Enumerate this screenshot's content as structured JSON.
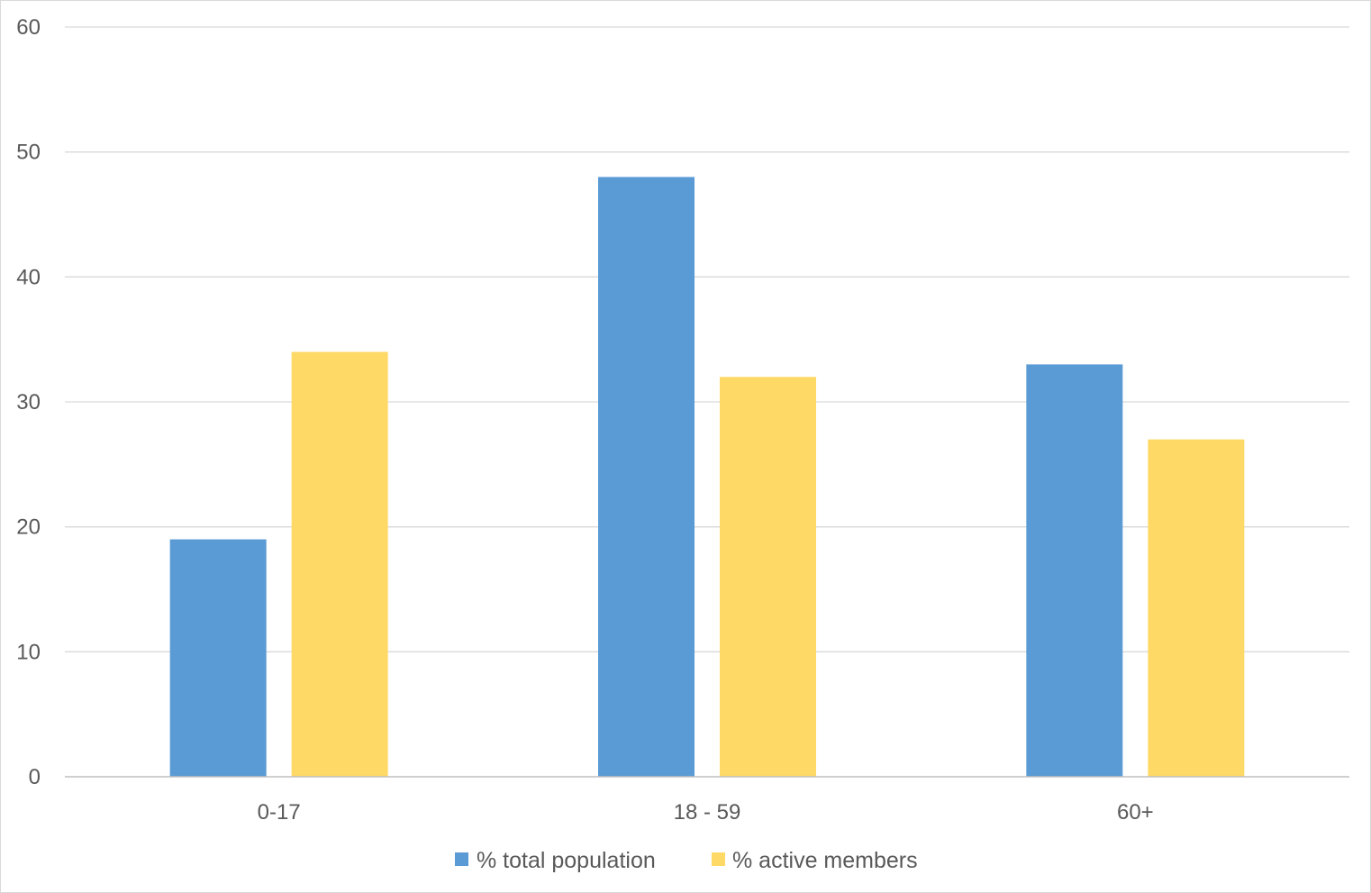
{
  "chart_data": {
    "type": "bar",
    "title": "",
    "xlabel": "",
    "ylabel": "",
    "categories": [
      "0-17",
      "18 - 59",
      "60+"
    ],
    "series": [
      {
        "name": "% total population",
        "values": [
          19,
          48,
          33
        ],
        "color": "#5B9BD5"
      },
      {
        "name": "% active members",
        "values": [
          34,
          32,
          27
        ],
        "color": "#FFD966"
      }
    ],
    "ylim": [
      0,
      60
    ],
    "yticks": [
      0,
      10,
      20,
      30,
      40,
      50,
      60
    ],
    "ytick_labels": [
      "0",
      "10",
      "20",
      "30",
      "40",
      "50",
      "60"
    ],
    "grid": true,
    "gridline_color": "#d9d9d9",
    "legend_position": "bottom"
  }
}
